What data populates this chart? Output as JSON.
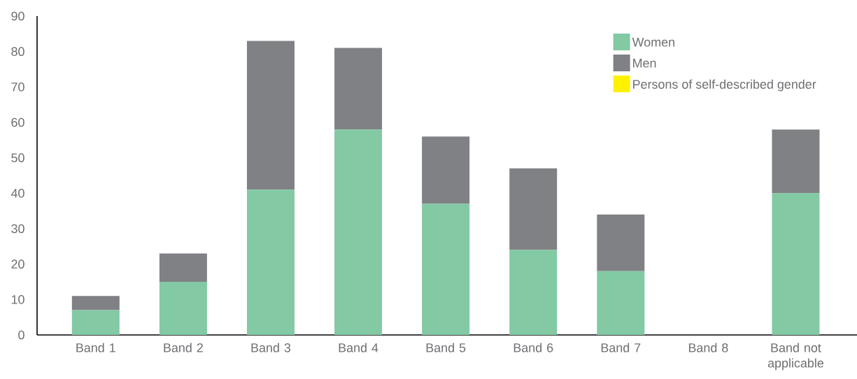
{
  "chart_data": {
    "type": "bar",
    "stacked": true,
    "categories": [
      "Band 1",
      "Band 2",
      "Band 3",
      "Band 4",
      "Band 5",
      "Band 6",
      "Band 7",
      "Band 8",
      "Band not applicable"
    ],
    "series": [
      {
        "name": "Women",
        "color": "#82c9a4",
        "values": [
          7,
          15,
          41,
          58,
          37,
          24,
          18,
          0,
          40
        ]
      },
      {
        "name": "Men",
        "color": "#808184",
        "values": [
          4,
          8,
          42,
          23,
          19,
          23,
          16,
          0,
          18
        ]
      },
      {
        "name": "Persons of self-described gender",
        "color": "#fff200",
        "values": [
          0,
          0,
          0,
          0,
          0,
          0,
          0,
          0,
          0
        ]
      }
    ],
    "ylim": [
      0,
      90
    ],
    "yticks": [
      0,
      10,
      20,
      30,
      40,
      50,
      60,
      70,
      80,
      90
    ],
    "legend": "top right"
  }
}
